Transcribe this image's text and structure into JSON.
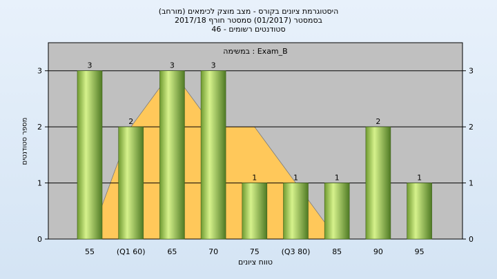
{
  "header": {
    "line1": "(היסטוגרמת ציונים בקורס - מצב מוצק לכימאים (מורחב",
    "line2": "בסמסטר  (01/2017)  סמסטר חורף 2017/18",
    "line3": "סטודנטים רשומים - 46"
  },
  "chart_data": {
    "type": "bar",
    "title": "(היסטוגרמת ציונים בקורס - מצב מוצק לכימאים (מורחב",
    "xlabel": "טווח ציונים",
    "ylabel": "מספר סטודנטים",
    "categories": [
      "55",
      "(Q1 60)",
      "65",
      "70",
      "75",
      "(Q3 80)",
      "85",
      "90",
      "95"
    ],
    "series": [
      {
        "name": "Exam_B",
        "values": [
          3,
          2,
          3,
          3,
          1,
          1,
          1,
          2,
          1
        ]
      }
    ],
    "area_values": [
      0,
      2,
      3,
      2,
      2,
      1,
      0,
      0,
      0
    ],
    "ylim": [
      0,
      3.5
    ],
    "yticks": [
      0,
      1,
      2,
      3
    ],
    "legend": {
      "label": "במשימה : Exam_B",
      "placement": "top-center"
    },
    "grid": true,
    "colors": {
      "plot_bg": "#c0c0c0",
      "bar_light": "#d6f28c",
      "bar_dark": "#4f7a24",
      "area": "#ffc85a",
      "grid": "#000000"
    }
  }
}
